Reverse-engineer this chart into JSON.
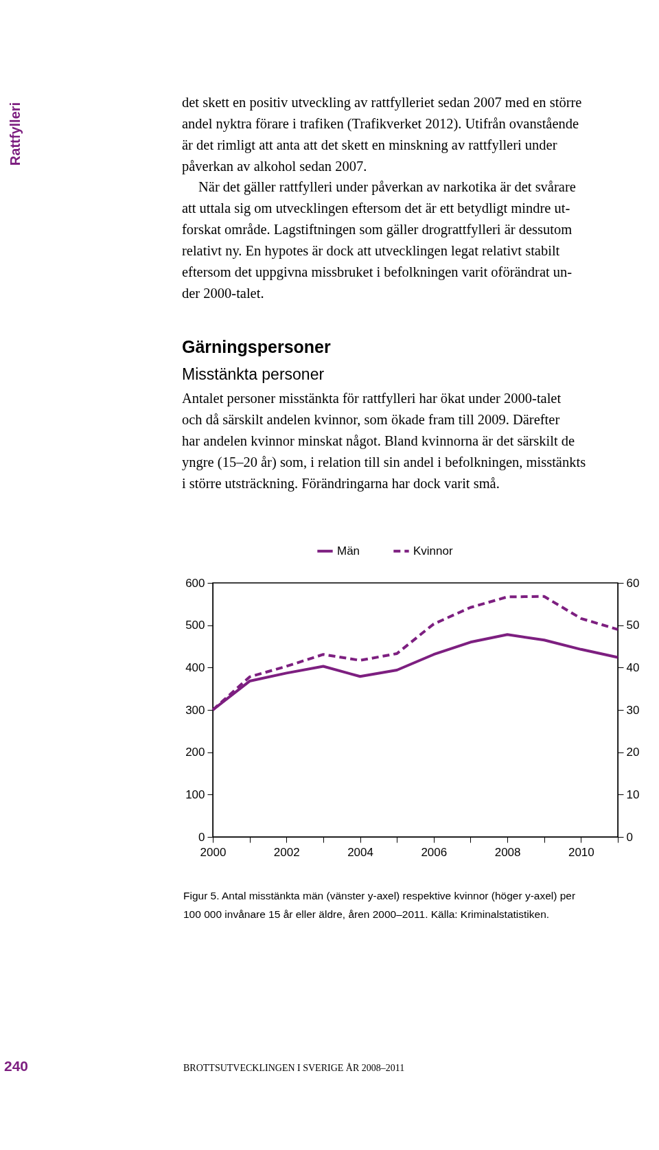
{
  "chart_data": {
    "type": "line",
    "title": "Gärningspersoner",
    "subtitle": "Misstänkta personer",
    "annotations": [
      "det skett en positiv utveckling av rattfylleriet sedan 2007 med en större",
      "andel nyktra förare i trafiken (Trafikverket 2012). Utifrån ovanstående",
      "är det rimligt att anta att det skett en minskning av rattfylleri under",
      "påverkan av alkohol sedan 2007.",
      "När det gäller rattfylleri under påverkan av narkotika är det svårare",
      "att uttala sig om utvecklingen eftersom det är ett betydligt mindre ut-",
      "forskat område. Lagstiftningen som gäller drograttfylleri är dessutom",
      "relativt ny. En hypotes är dock att utvecklingen legat relativt stabilt",
      "eftersom det uppgivna missbruket i befolkningen varit oförändrat un-",
      "der 2000-talet.",
      "Antalet personer misstänkta för rattfylleri har ökat under 2000-talet",
      "och då särskilt andelen kvinnor, som ökade fram till 2009. Därefter",
      "har andelen kvinnor minskat något. Bland kvinnorna är det särskilt de",
      "yngre (15–20 år) som, i relation till sin andel i befolkningen, misstänkts",
      "i större utsträckning. Förändringarna har dock varit små.",
      "Figur 5. Antal misstänkta män (vänster y-axel) respektive kvinnor (höger y-axel) per",
      "100 000 invånare 15 år eller äldre, åren 2000–2011. Källa: Kriminalstatistiken.",
      "Rattfylleri",
      "240",
      "BROTTSUTVECKLINGEN I SVERIGE ÅR 2008–2011"
    ],
    "x": [
      2000,
      2001,
      2002,
      2003,
      2004,
      2005,
      2006,
      2007,
      2008,
      2009,
      2010,
      2011
    ],
    "xlim": [
      2000,
      2011
    ],
    "xticks": [
      2000,
      {
        "value": 2001,
        "label": null
      },
      2002,
      {
        "value": 2003,
        "label": null
      },
      2004,
      {
        "value": 2005,
        "label": null
      },
      2006,
      {
        "value": 2007,
        "label": null
      },
      2008,
      {
        "value": 2009,
        "label": null
      },
      2010,
      {
        "value": 2011,
        "label": null
      }
    ],
    "ylim": [
      0,
      600
    ],
    "yticks": [
      0,
      100,
      200,
      300,
      400,
      500,
      600
    ],
    "y2lim": [
      0,
      60
    ],
    "y2ticks": [
      0,
      10,
      20,
      30,
      40,
      50,
      60
    ],
    "grid": false,
    "legend": "top",
    "series": [
      {
        "name": "Män",
        "color": "#7d1f80",
        "line_style": "solid",
        "values": [
          300,
          368,
          387,
          403,
          379,
          394,
          431,
          460,
          478,
          465,
          443,
          424
        ]
      },
      {
        "name": "Kvinnor",
        "color": "#7d1f80",
        "line_style": "dashed",
        "axis": "y2",
        "values": [
          30,
          37.8,
          40.3,
          43.1,
          41.7,
          43.3,
          50.3,
          54.2,
          56.7,
          56.8,
          51.6,
          49.0
        ]
      }
    ]
  }
}
